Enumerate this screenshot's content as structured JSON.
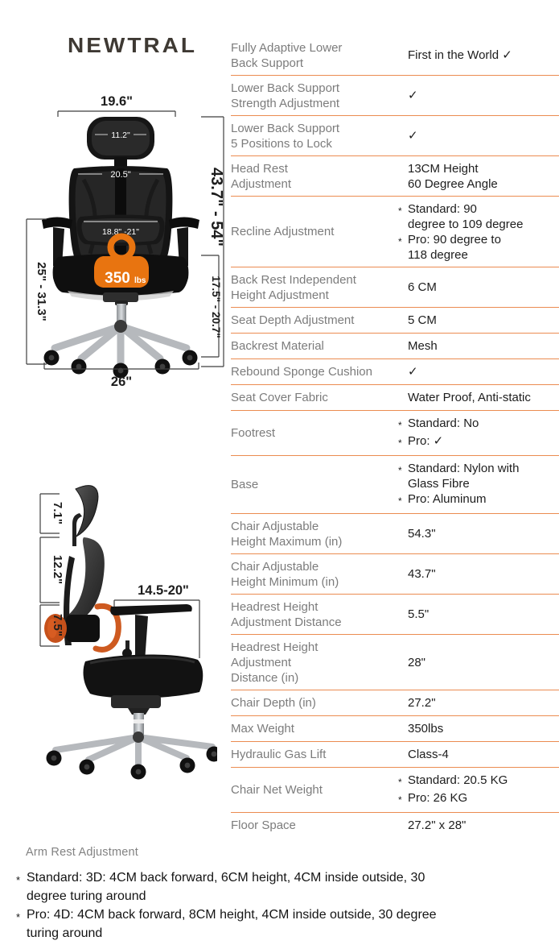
{
  "brand": {
    "logo_text": "NEWTRAL"
  },
  "bullet_marker": "*",
  "colors": {
    "divider": "#EB8C51",
    "label": "#7C7C7C",
    "value": "#1D1D1D",
    "badge_orange": "#E87410",
    "accent_orange": "#CE5A20",
    "logo": "#3E3933",
    "dim_line": "#3F3F3F"
  },
  "front_view": {
    "top_width": "19.6\"",
    "headrest_width": "11.2\"",
    "backrest_width": "20.5\"",
    "lumbar_width": "18.8\" -21\"",
    "overall_height": "43.7\" - 54\"",
    "back_height": "25\" - 31.3\"",
    "seat_height": "17.5\" - 20.7\"",
    "base_width": "26\"",
    "max_weight_value": "350",
    "max_weight_unit": "lbs"
  },
  "side_view": {
    "headrest_section": "7.1\"",
    "backrest_section": "12.2\"",
    "lumbar_section": "7.5\"",
    "armrest_depth": "14.5-20\""
  },
  "spec_table": {
    "rows": [
      {
        "label": "Fully Adaptive Lower\nBack Support",
        "value": "First in the World ✓"
      },
      {
        "label": "Lower Back Support\nStrength Adjustment",
        "value": "✓"
      },
      {
        "label": "Lower Back Support\n5 Positions to Lock",
        "value": "✓"
      },
      {
        "label": "Head Rest\nAdjustment",
        "value": "13CM Height\n60 Degree Angle"
      },
      {
        "label": "Recline Adjustment",
        "bullets": [
          "Standard: 90\ndegree to 109 degree",
          "Pro: 90 degree to\n118 degree"
        ]
      },
      {
        "label": "Back Rest Independent\nHeight Adjustment",
        "value": "6 CM"
      },
      {
        "label": "Seat Depth Adjustment",
        "value": "5 CM"
      },
      {
        "label": "Backrest Material",
        "value": "Mesh"
      },
      {
        "label": "Rebound Sponge Cushion",
        "value": "✓"
      },
      {
        "label": "Seat Cover Fabric",
        "value": "Water Proof, Anti-static"
      },
      {
        "label": "Footrest",
        "bullets": [
          "Standard: No",
          "Pro: ✓"
        ]
      },
      {
        "label": "Base",
        "bullets": [
          "Standard: Nylon with\nGlass Fibre",
          "Pro: Aluminum"
        ]
      },
      {
        "label": "Chair Adjustable\nHeight Maximum (in)",
        "value": "54.3\""
      },
      {
        "label": "Chair Adjustable\nHeight Minimum (in)",
        "value": "43.7\""
      },
      {
        "label": "Headrest Height\nAdjustment Distance",
        "value": "5.5\""
      },
      {
        "label": "Headrest Height\nAdjustment\nDistance (in)",
        "value": "28\""
      },
      {
        "label": "Chair Depth (in)",
        "value": "27.2\""
      },
      {
        "label": "Max Weight",
        "value": "350lbs"
      },
      {
        "label": "Hydraulic Gas Lift",
        "value": "Class-4"
      },
      {
        "label": "Chair Net Weight",
        "bullets": [
          "Standard: 20.5 KG",
          "Pro: 26 KG"
        ]
      },
      {
        "label": "Floor Space",
        "value": "27.2\" x 28\""
      }
    ]
  },
  "arm_rest_note": {
    "title": "Arm Rest Adjustment",
    "bullets": [
      "Standard:  3D: 4CM back forward, 6CM height, 4CM inside outside, 30 degree turing around",
      "Pro: 4D: 4CM back forward, 8CM height, 4CM inside outside, 30 degree turing around"
    ]
  }
}
